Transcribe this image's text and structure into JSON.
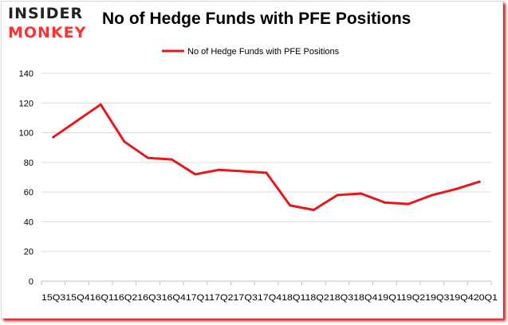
{
  "logo": {
    "line1": "INSIDER",
    "line2": "MONKEY"
  },
  "colors": {
    "series": "#e8171b",
    "grid": "#d9d9d9",
    "axis": "#bfbfbf",
    "brand_red": "#ff3333"
  },
  "chart_data": {
    "type": "line",
    "title": "No of Hedge Funds with PFE Positions",
    "categories": [
      "2015Q3",
      "2015Q4",
      "2016Q1",
      "2016Q2",
      "2016Q3",
      "2016Q4",
      "2017Q1",
      "2017Q2",
      "2017Q3",
      "2017Q4",
      "2018Q1",
      "2018Q2",
      "2018Q3",
      "2018Q4",
      "2019Q1",
      "2019Q2",
      "2019Q3",
      "2019Q4",
      "2020Q1"
    ],
    "x_tick_text": "15Q315Q416Q116Q216Q316Q417Q117Q217Q317Q418Q118Q218Q318Q419Q119Q219Q319Q420Q1",
    "series": [
      {
        "name": "No of Hedge Funds with PFE Positions",
        "values": [
          97,
          108,
          119,
          94,
          83,
          82,
          72,
          75,
          74,
          73,
          51,
          48,
          58,
          59,
          53,
          52,
          58,
          62,
          67
        ]
      }
    ],
    "ylim": [
      0,
      140
    ],
    "yticks": [
      0,
      20,
      40,
      60,
      80,
      100,
      120,
      140
    ],
    "grid": true,
    "legend": "top-center",
    "xlabel": "",
    "ylabel": ""
  }
}
